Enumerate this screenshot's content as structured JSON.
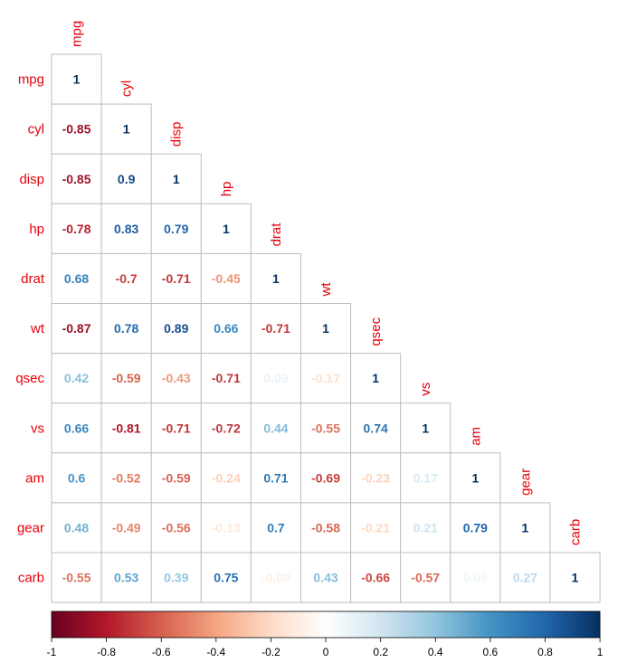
{
  "chart_data": {
    "type": "heatmap",
    "title": "",
    "variables": [
      "mpg",
      "cyl",
      "disp",
      "hp",
      "drat",
      "wt",
      "qsec",
      "vs",
      "am",
      "gear",
      "carb"
    ],
    "matrix_lower": [
      [
        "1"
      ],
      [
        "-0.85",
        "1"
      ],
      [
        "-0.85",
        "0.9",
        "1"
      ],
      [
        "-0.78",
        "0.83",
        "0.79",
        "1"
      ],
      [
        "0.68",
        "-0.7",
        "-0.71",
        "-0.45",
        "1"
      ],
      [
        "-0.87",
        "0.78",
        "0.89",
        "0.66",
        "-0.71",
        "1"
      ],
      [
        "0.42",
        "-0.59",
        "-0.43",
        "-0.71",
        "0.09",
        "-0.17",
        "1"
      ],
      [
        "0.66",
        "-0.81",
        "-0.71",
        "-0.72",
        "0.44",
        "-0.55",
        "0.74",
        "1"
      ],
      [
        "0.6",
        "-0.52",
        "-0.59",
        "-0.24",
        "0.71",
        "-0.69",
        "-0.23",
        "0.17",
        "1"
      ],
      [
        "0.48",
        "-0.49",
        "-0.56",
        "-0.13",
        "0.7",
        "-0.58",
        "-0.21",
        "0.21",
        "0.79",
        "1"
      ],
      [
        "-0.55",
        "0.53",
        "0.39",
        "0.75",
        "-0.09",
        "0.43",
        "-0.66",
        "-0.57",
        "0.06",
        "0.27",
        "1"
      ]
    ],
    "colorbar": {
      "range": [
        -1,
        1
      ],
      "ticks": [
        "-1",
        "-0.8",
        "-0.6",
        "-0.4",
        "-0.2",
        "0",
        "0.2",
        "0.4",
        "0.6",
        "0.8",
        "1"
      ]
    },
    "colors": {
      "label": "#e8000b",
      "negative_end": "#67001f",
      "positive_end": "#053061",
      "mid": "#ffffff",
      "grid": "#bebebe"
    }
  }
}
